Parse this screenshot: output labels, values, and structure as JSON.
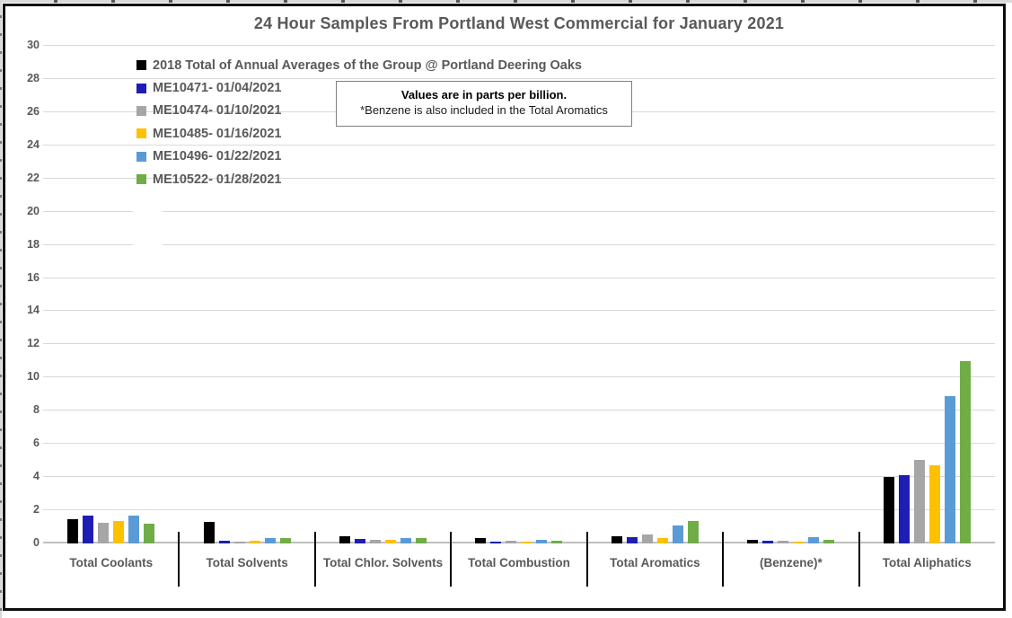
{
  "chart": {
    "title": "24 Hour Samples From Portland West Commercial for January 2021",
    "note": {
      "line1": "Values are in parts per billion.",
      "line2": "*Benzene is also included in the Total Aromatics"
    }
  },
  "chart_data": {
    "type": "bar",
    "title": "24 Hour Samples From Portland West Commercial for January 2021",
    "units": "parts per billion",
    "categories": [
      "Total Coolants",
      "Total Solvents",
      "Total Chlor. Solvents",
      "Total Combustion",
      "Total Aromatics",
      "(Benzene)*",
      "Total Aliphatics"
    ],
    "series": [
      {
        "name": "2018 Total of Annual Averages of the Group @ Portland Deering Oaks",
        "color": "#000000",
        "values": [
          1.45,
          1.3,
          0.45,
          0.3,
          0.45,
          0.2,
          4.0
        ]
      },
      {
        "name": "ME10471- 01/04/2021",
        "color": "#1e1eb4",
        "values": [
          1.7,
          0.15,
          0.25,
          0.1,
          0.4,
          0.15,
          4.1
        ]
      },
      {
        "name": "ME10474- 01/10/2021",
        "color": "#a6a6a6",
        "values": [
          1.25,
          0.1,
          0.2,
          0.15,
          0.55,
          0.15,
          5.05
        ]
      },
      {
        "name": "ME10485- 01/16/2021",
        "color": "#ffc000",
        "values": [
          1.35,
          0.15,
          0.2,
          0.1,
          0.3,
          0.1,
          4.7
        ]
      },
      {
        "name": "ME10496- 01/22/2021",
        "color": "#5b9bd5",
        "values": [
          1.7,
          0.35,
          0.3,
          0.2,
          1.1,
          0.4,
          8.9
        ]
      },
      {
        "name": "ME10522- 01/28/2021",
        "color": "#70ad47",
        "values": [
          1.2,
          0.35,
          0.35,
          0.15,
          1.35,
          0.2,
          11.0
        ]
      }
    ],
    "xlabel": "",
    "ylabel": "",
    "ylim": [
      0,
      30
    ],
    "ytick_step": 2,
    "grid": true,
    "legend_position": "top-left"
  }
}
